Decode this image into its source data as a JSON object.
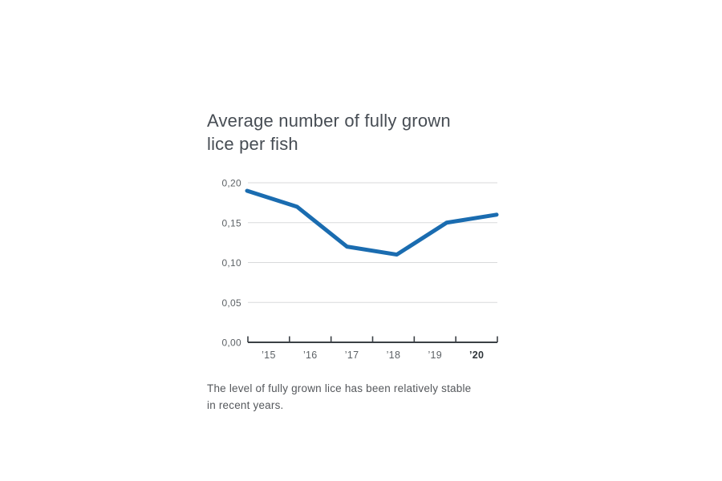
{
  "page": {
    "background": "#ffffff",
    "title_lines": [
      "Average number of fully grown",
      "lice per fish"
    ],
    "caption_lines": [
      "The level of fully grown lice has been relatively stable",
      "in recent years."
    ]
  },
  "chart_data": {
    "type": "line",
    "title": "Average number of fully grown lice per fish",
    "categories": [
      "’15",
      "’16",
      "’17",
      "’18",
      "’19",
      "’20"
    ],
    "values": [
      0.19,
      0.17,
      0.12,
      0.11,
      0.15,
      0.16
    ],
    "xlabel": "",
    "ylabel": "",
    "ylim": [
      0,
      0.2
    ],
    "y_tick_step": 0.05,
    "y_tick_labels": [
      "0,00",
      "0,05",
      "0,10",
      "0,15",
      "0,20"
    ],
    "grid": "horizontal",
    "legend": "none",
    "emphasized_category": "’20",
    "line_color": "#1a6cb0",
    "annotation": "The level of fully grown lice has been relatively stable in recent years."
  },
  "colors": {
    "title_text": "#474d54",
    "axis_text": "#5d6266",
    "emphasized_axis_text": "#2f353a",
    "caption_text": "#55585c",
    "gridline": "#d9dadb",
    "axis_line": "#3b4045",
    "line": "#1a6cb0",
    "background": "#ffffff"
  }
}
